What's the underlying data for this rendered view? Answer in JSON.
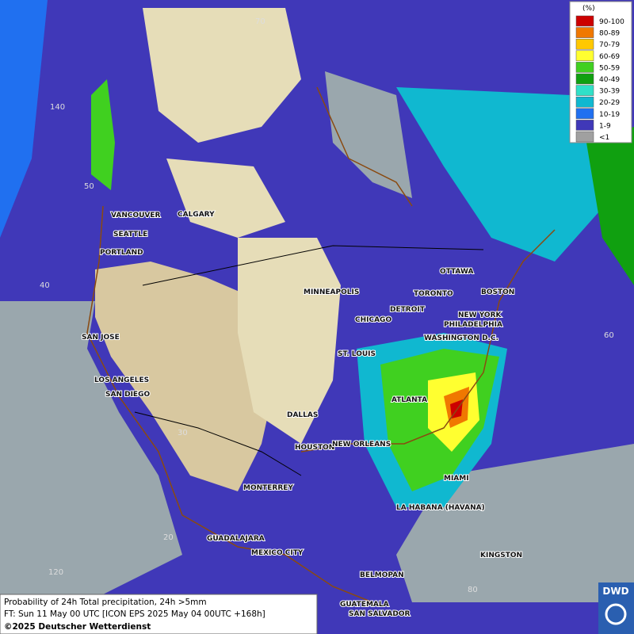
{
  "legend": {
    "title": "(%)",
    "entries": [
      {
        "label": "90-100",
        "color": "#cc0000"
      },
      {
        "label": "80-89",
        "color": "#f07800"
      },
      {
        "label": "70-79",
        "color": "#ffc800"
      },
      {
        "label": "60-69",
        "color": "#ffff30"
      },
      {
        "label": "50-59",
        "color": "#40d020"
      },
      {
        "label": "40-49",
        "color": "#10a010"
      },
      {
        "label": "30-39",
        "color": "#30e0c8"
      },
      {
        "label": "20-29",
        "color": "#10b8d0"
      },
      {
        "label": "10-19",
        "color": "#2070f0"
      },
      {
        "label": "1-9",
        "color": "#4038b8"
      },
      {
        "label": "<1",
        "color": "#a0a0a0"
      }
    ]
  },
  "cities": [
    "VANCOUVER",
    "CALGARY",
    "SEATTLE",
    "PORTLAND",
    "SAN JOSE",
    "LOS ANGELES",
    "SAN DIEGO",
    "MINNEAPOLIS",
    "CHICAGO",
    "DETROIT",
    "TORONTO",
    "OTTAWA",
    "BOSTON",
    "NEW YORK",
    "PHILADELPHIA",
    "WASHINGTON D.C.",
    "ST. LOUIS",
    "ATLANTA",
    "DALLAS",
    "HOUSTON",
    "NEW ORLEANS",
    "MIAMI",
    "MONTERREY",
    "LA HABANA (HAVANA)",
    "GUADALAJARA",
    "MEXICO CITY",
    "KINGSTON",
    "BELMOPAN",
    "GUATEMALA",
    "SAN SALVADOR"
  ],
  "grid_labels": [
    "70",
    "140",
    "50",
    "40",
    "60",
    "30",
    "20",
    "120",
    "80"
  ],
  "footer": {
    "line1": "Probability of 24h Total precipitation, 24h >5mm",
    "line2": "FT: Sun 11 May 00 UTC [ICON EPS 2025 May 04 00UTC +168h]",
    "copyright": "©2025 Deutscher Wetterdienst"
  },
  "logo": "DWD"
}
